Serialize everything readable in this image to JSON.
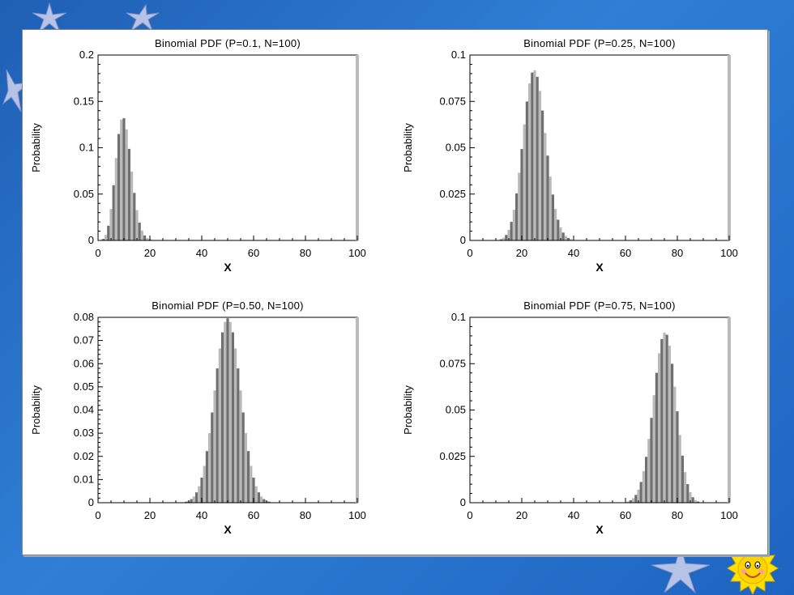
{
  "decorations": {
    "sun": "smiling-sun-icon",
    "stars": "star-icon"
  },
  "colors": {
    "bar_dark": "#6f6f6f",
    "bar_light": "#b9b9b9"
  },
  "chart_data": [
    {
      "type": "bar",
      "title": "Binomial PDF (P=0.1, N=100)",
      "xlabel": "X",
      "ylabel": "Probability",
      "p": 0.1,
      "n": 100,
      "xlim": [
        0,
        100
      ],
      "ylim": [
        0,
        0.2
      ],
      "yticks": [
        "0",
        "0.05",
        "0.1",
        "0.15",
        "0.2"
      ],
      "xticks": [
        "0",
        "20",
        "40",
        "60",
        "80",
        "100"
      ]
    },
    {
      "type": "bar",
      "title": "Binomial PDF (P=0.25, N=100)",
      "xlabel": "X",
      "ylabel": "Probability",
      "p": 0.25,
      "n": 100,
      "xlim": [
        0,
        100
      ],
      "ylim": [
        0,
        0.1
      ],
      "yticks": [
        "0",
        "0.025",
        "0.05",
        "0.075",
        "0.1"
      ],
      "xticks": [
        "0",
        "20",
        "40",
        "60",
        "80",
        "100"
      ]
    },
    {
      "type": "bar",
      "title": "Binomial PDF (P=0.50, N=100)",
      "xlabel": "X",
      "ylabel": "Probability",
      "p": 0.5,
      "n": 100,
      "xlim": [
        0,
        100
      ],
      "ylim": [
        0,
        0.08
      ],
      "yticks": [
        "0",
        "0.01",
        "0.02",
        "0.03",
        "0.04",
        "0.05",
        "0.06",
        "0.07",
        "0.08"
      ],
      "xticks": [
        "0",
        "20",
        "40",
        "60",
        "80",
        "100"
      ]
    },
    {
      "type": "bar",
      "title": "Binomial PDF (P=0.75, N=100)",
      "xlabel": "X",
      "ylabel": "Probability",
      "p": 0.75,
      "n": 100,
      "xlim": [
        0,
        100
      ],
      "ylim": [
        0,
        0.1
      ],
      "yticks": [
        "0",
        "0.025",
        "0.05",
        "0.075",
        "0.1"
      ],
      "xticks": [
        "0",
        "20",
        "40",
        "60",
        "80",
        "100"
      ]
    }
  ]
}
